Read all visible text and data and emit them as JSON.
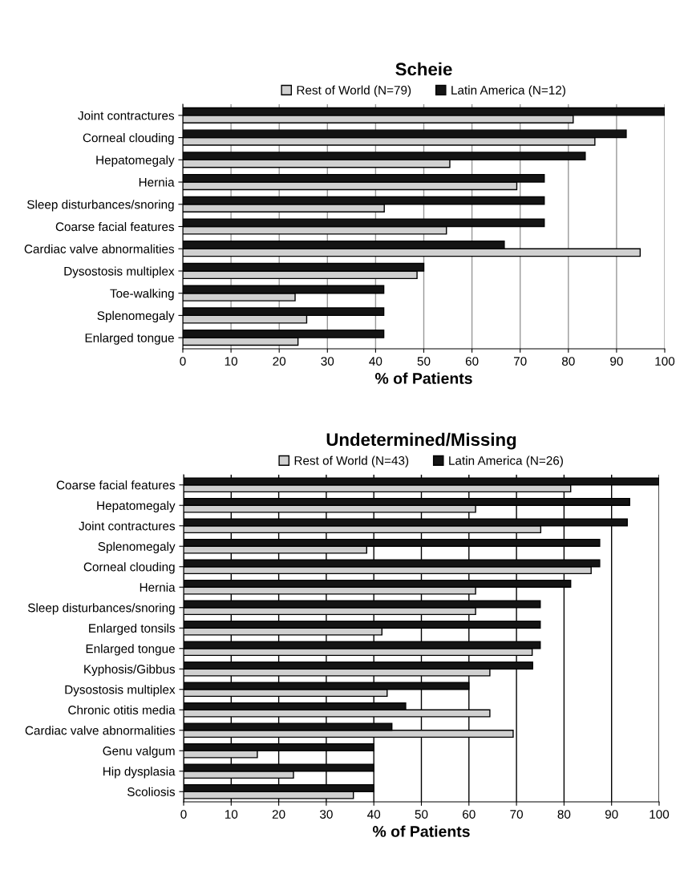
{
  "chart_data": [
    {
      "type": "bar",
      "orientation": "horizontal",
      "title": "Scheie",
      "xlabel": "% of Patients",
      "categories": [
        "Joint contractures",
        "Corneal clouding",
        "Hepatomegaly",
        "Hernia",
        "Sleep disturbances/snoring",
        "Coarse facial features",
        "Cardiac valve abnormalities",
        "Dysostosis multiplex",
        "Toe-walking",
        "Splenomegaly",
        "Enlarged tongue"
      ],
      "series": [
        {
          "name": "Rest of World (N=79)",
          "color": "#d0d0d0",
          "values": [
            81.0,
            85.5,
            55.4,
            69.3,
            41.8,
            54.7,
            94.9,
            48.6,
            23.3,
            25.7,
            23.9
          ]
        },
        {
          "name": "Latin America (N=12)",
          "color": "#141414",
          "values": [
            100,
            92.0,
            83.5,
            75.0,
            75.0,
            75.0,
            66.7,
            50.0,
            41.7,
            41.7,
            41.7
          ]
        }
      ],
      "xlim": [
        0,
        100
      ],
      "xticks": [
        0,
        10,
        20,
        30,
        40,
        50,
        60,
        70,
        80,
        90,
        100
      ],
      "grid": "x",
      "legend": "top"
    },
    {
      "type": "bar",
      "orientation": "horizontal",
      "title": "Undetermined/Missing",
      "xlabel": "% of Patients",
      "categories": [
        "Coarse facial features",
        "Hepatomegaly",
        "Joint contractures",
        "Splenomegaly",
        "Corneal clouding",
        "Hernia",
        "Sleep disturbances/snoring",
        "Enlarged tonsils",
        "Enlarged tongue",
        "Kyphosis/Gibbus",
        "Dysostosis multiplex",
        "Chronic otitis media",
        "Cardiac valve abnormalities",
        "Genu valgum",
        "Hip dysplasia",
        "Scoliosis"
      ],
      "series": [
        {
          "name": "Rest of World (N=43)",
          "color": "#d0d0d0",
          "values": [
            81.4,
            61.4,
            75.1,
            38.5,
            85.7,
            61.4,
            61.4,
            41.7,
            73.3,
            64.4,
            42.8,
            64.4,
            69.3,
            15.5,
            23.1,
            35.7
          ]
        },
        {
          "name": "Latin America (N=26)",
          "color": "#141414",
          "values": [
            100,
            93.8,
            93.3,
            87.5,
            87.5,
            81.4,
            75.0,
            75.0,
            75.0,
            73.4,
            60.0,
            46.7,
            43.8,
            40.0,
            40.0,
            40.0
          ]
        }
      ],
      "xlim": [
        0,
        100
      ],
      "xticks": [
        0,
        10,
        20,
        30,
        40,
        50,
        60,
        70,
        80,
        90,
        100
      ],
      "grid": "x",
      "legend": "top"
    }
  ]
}
